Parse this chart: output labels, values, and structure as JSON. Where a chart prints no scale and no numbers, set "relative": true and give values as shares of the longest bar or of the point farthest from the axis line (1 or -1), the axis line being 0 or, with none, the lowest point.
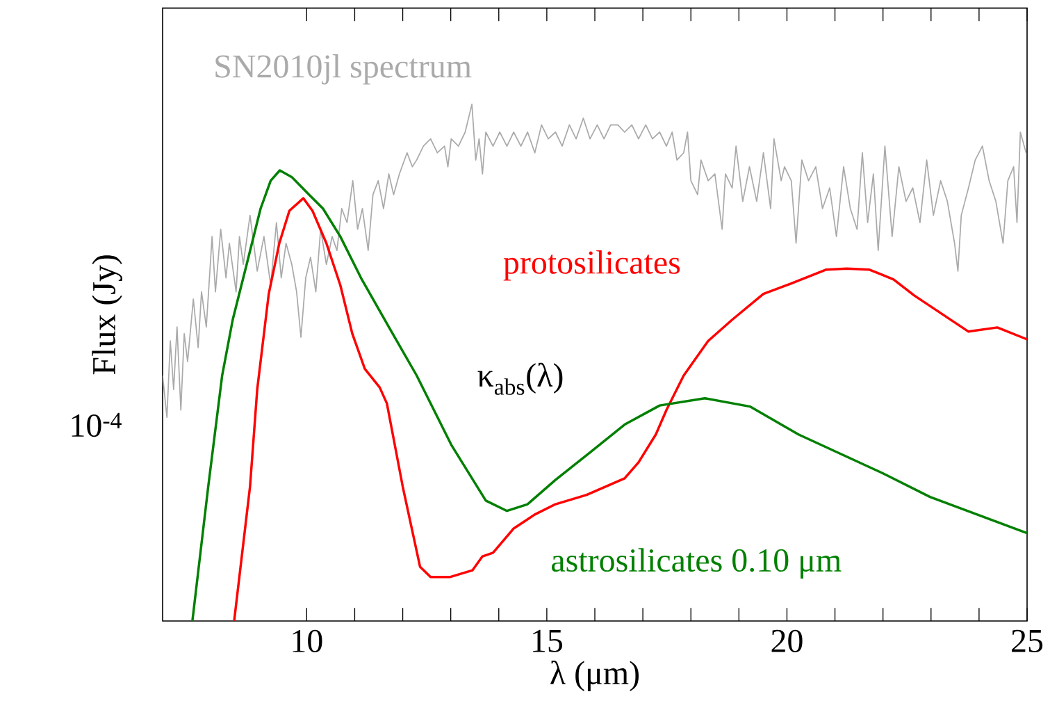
{
  "chart_data": {
    "type": "line",
    "xlabel": "λ (μm)",
    "ylabel": "Flux (Jy)",
    "relative": true,
    "marker": "none",
    "line_style": "solid",
    "xlim": [
      7,
      25
    ],
    "xticks": [
      10,
      15,
      20,
      25
    ],
    "annotations": [
      "κ$_{abs}$(λ)",
      "10$^{-4}$"
    ],
    "series": [
      {
        "name": "SN2010jl spectrum",
        "color": "#aaaaaa",
        "x": [
          7.0,
          7.09,
          7.16,
          7.23,
          7.3,
          7.38,
          7.45,
          7.52,
          7.64,
          7.74,
          7.81,
          7.91,
          8.03,
          8.1,
          8.21,
          8.32,
          8.39,
          8.53,
          8.6,
          8.68,
          8.82,
          8.97,
          9.11,
          9.25,
          9.37,
          9.47,
          9.57,
          9.69,
          9.79,
          9.88,
          9.98,
          10.08,
          10.19,
          10.29,
          10.41,
          10.53,
          10.63,
          10.73,
          10.84,
          10.96,
          11.06,
          11.16,
          11.28,
          11.38,
          11.49,
          11.6,
          11.71,
          11.81,
          11.93,
          12.09,
          12.2,
          12.29,
          12.43,
          12.58,
          12.72,
          12.87,
          12.94,
          13.01,
          13.16,
          13.3,
          13.44,
          13.52,
          13.59,
          13.66,
          13.73,
          13.88,
          14.02,
          14.17,
          14.31,
          14.46,
          14.6,
          14.75,
          14.89,
          15.03,
          15.18,
          15.32,
          15.47,
          15.61,
          15.76,
          15.9,
          16.05,
          16.19,
          16.33,
          16.48,
          16.62,
          16.77,
          16.91,
          17.06,
          17.2,
          17.35,
          17.49,
          17.61,
          17.71,
          17.85,
          17.93,
          18.0,
          18.14,
          18.21,
          18.36,
          18.5,
          18.65,
          18.72,
          18.86,
          18.94,
          19.08,
          19.22,
          19.37,
          19.51,
          19.66,
          19.73,
          19.88,
          19.95,
          20.09,
          20.19,
          20.31,
          20.45,
          20.6,
          20.74,
          20.89,
          21.03,
          21.18,
          21.32,
          21.46,
          21.57,
          21.68,
          21.8,
          21.9,
          22.04,
          22.19,
          22.33,
          22.48,
          22.62,
          22.77,
          22.91,
          23.05,
          23.2,
          23.34,
          23.49,
          23.56,
          23.63,
          23.78,
          23.92,
          24.07,
          24.21,
          24.35,
          24.5,
          24.6,
          24.72,
          24.79,
          24.86,
          24.98
        ],
        "values": [
          0.475,
          0.394,
          0.542,
          0.448,
          0.569,
          0.408,
          0.556,
          0.502,
          0.623,
          0.529,
          0.637,
          0.569,
          0.744,
          0.637,
          0.758,
          0.664,
          0.731,
          0.637,
          0.744,
          0.69,
          0.785,
          0.677,
          0.744,
          0.65,
          0.771,
          0.664,
          0.731,
          0.69,
          0.637,
          0.549,
          0.664,
          0.704,
          0.637,
          0.758,
          0.69,
          0.744,
          0.717,
          0.798,
          0.771,
          0.852,
          0.758,
          0.798,
          0.717,
          0.825,
          0.852,
          0.798,
          0.865,
          0.825,
          0.865,
          0.906,
          0.879,
          0.892,
          0.919,
          0.933,
          0.906,
          0.919,
          0.879,
          0.933,
          0.919,
          0.946,
          1.0,
          0.892,
          0.933,
          0.865,
          0.946,
          0.919,
          0.946,
          0.919,
          0.946,
          0.919,
          0.946,
          0.906,
          0.96,
          0.933,
          0.946,
          0.919,
          0.96,
          0.933,
          0.973,
          0.933,
          0.96,
          0.933,
          0.96,
          0.96,
          0.946,
          0.96,
          0.933,
          0.96,
          0.933,
          0.946,
          0.919,
          0.946,
          0.892,
          0.906,
          0.946,
          0.852,
          0.825,
          0.892,
          0.852,
          0.865,
          0.758,
          0.865,
          0.838,
          0.919,
          0.812,
          0.879,
          0.812,
          0.906,
          0.798,
          0.933,
          0.852,
          0.879,
          0.852,
          0.731,
          0.892,
          0.852,
          0.879,
          0.798,
          0.838,
          0.744,
          0.879,
          0.798,
          0.758,
          0.906,
          0.771,
          0.865,
          0.717,
          0.919,
          0.744,
          0.879,
          0.812,
          0.838,
          0.771,
          0.892,
          0.785,
          0.852,
          0.812,
          0.731,
          0.677,
          0.785,
          0.838,
          0.892,
          0.919,
          0.852,
          0.812,
          0.731,
          0.852,
          0.879,
          0.771,
          0.946,
          0.906
        ]
      },
      {
        "name": "protosilicates",
        "color": "#ff0000",
        "x": [
          8.49,
          8.82,
          8.97,
          9.21,
          9.43,
          9.64,
          9.93,
          10.12,
          10.41,
          10.7,
          10.95,
          11.21,
          11.52,
          11.67,
          12.0,
          12.36,
          12.58,
          12.98,
          13.16,
          13.45,
          13.66,
          13.88,
          14.31,
          14.75,
          15.18,
          15.83,
          16.62,
          16.91,
          17.27,
          17.49,
          17.85,
          18.36,
          18.86,
          19.51,
          20.09,
          20.82,
          21.25,
          21.71,
          22.22,
          22.65,
          23.78,
          24.38,
          25.0
        ],
        "values": [
          0,
          0.26,
          0.448,
          0.633,
          0.731,
          0.794,
          0.818,
          0.794,
          0.731,
          0.65,
          0.556,
          0.488,
          0.452,
          0.421,
          0.26,
          0.105,
          0.085,
          0.085,
          0.09,
          0.098,
          0.125,
          0.132,
          0.179,
          0.206,
          0.226,
          0.244,
          0.276,
          0.307,
          0.361,
          0.408,
          0.475,
          0.542,
          0.583,
          0.633,
          0.653,
          0.68,
          0.682,
          0.68,
          0.661,
          0.63,
          0.56,
          0.568,
          0.545
        ]
      },
      {
        "name": "astrosilicates  0.10 μm",
        "color": "#008000",
        "x": [
          7.62,
          7.95,
          8.24,
          8.46,
          8.75,
          9.04,
          9.25,
          9.44,
          9.69,
          10.05,
          10.34,
          10.7,
          11.13,
          11.71,
          12.29,
          13.01,
          13.73,
          14.17,
          14.6,
          15.18,
          15.9,
          16.62,
          17.35,
          18.29,
          19.23,
          20.24,
          21.97,
          22.98,
          25.0
        ],
        "values": [
          0,
          0.26,
          0.475,
          0.583,
          0.69,
          0.798,
          0.852,
          0.872,
          0.859,
          0.825,
          0.798,
          0.744,
          0.664,
          0.569,
          0.475,
          0.341,
          0.233,
          0.213,
          0.226,
          0.273,
          0.326,
          0.38,
          0.417,
          0.431,
          0.415,
          0.361,
          0.287,
          0.24,
          0.17
        ]
      }
    ]
  }
}
